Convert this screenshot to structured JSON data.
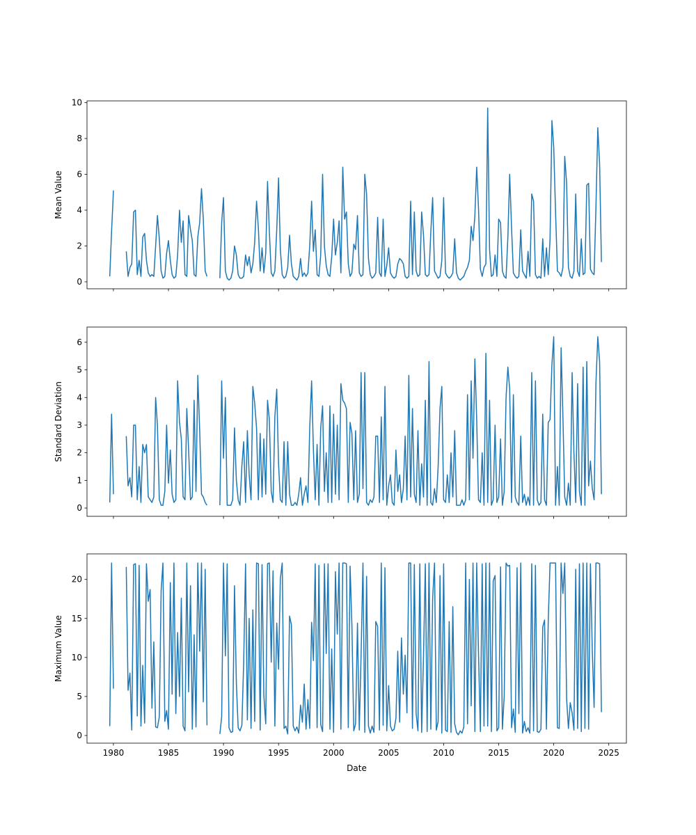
{
  "chart_data": [
    {
      "type": "line",
      "xlabel": "",
      "ylabel": "Mean Value",
      "xlim": [
        1977.6,
        2026.6
      ],
      "ylim": [
        -0.39,
        10.1
      ],
      "yticks": [
        0,
        2,
        4,
        6,
        8,
        10
      ],
      "xticks": [
        1980,
        1985,
        1990,
        1995,
        2000,
        2005,
        2010,
        2015,
        2020,
        2025
      ],
      "show_xtick_labels": false,
      "color": "#1f77b4",
      "grid": false,
      "months": [
        "01",
        "03",
        "05",
        "07",
        "09",
        "11"
      ],
      "by_year": {
        "1979": [
          null,
          null,
          null,
          null,
          0.3,
          2.8
        ],
        "1980": [
          5.1,
          null,
          null,
          null,
          null,
          null
        ],
        "1981": [
          null,
          1.7,
          0.3,
          0.8,
          1.0,
          3.9
        ],
        "1982": [
          4.0,
          0.4,
          1.2,
          0.3,
          2.5,
          2.7
        ],
        "1983": [
          1.2,
          0.5,
          0.3,
          0.4,
          0.3,
          2.0
        ],
        "1984": [
          3.7,
          2.4,
          0.6,
          0.2,
          0.3,
          1.6
        ],
        "1985": [
          2.3,
          1.2,
          0.4,
          0.2,
          0.3,
          1.5
        ],
        "1986": [
          4.0,
          2.2,
          3.4,
          0.4,
          0.3,
          3.7
        ],
        "1987": [
          2.9,
          2.3,
          0.4,
          0.3,
          2.5,
          3.3
        ],
        "1988": [
          5.2,
          3.5,
          0.6,
          0.3,
          null,
          null
        ],
        "1989": [
          null,
          null,
          null,
          null,
          0.2,
          3.3
        ],
        "1990": [
          4.7,
          0.6,
          0.2,
          0.1,
          0.2,
          0.6
        ],
        "1991": [
          2.0,
          1.5,
          0.4,
          0.2,
          0.2,
          0.3
        ],
        "1992": [
          1.5,
          0.9,
          1.4,
          0.5,
          1.0,
          2.2
        ],
        "1993": [
          4.5,
          3.0,
          0.6,
          1.9,
          0.5,
          1.6
        ],
        "1994": [
          5.6,
          2.8,
          0.5,
          0.3,
          0.6,
          2.9
        ],
        "1995": [
          5.8,
          1.8,
          0.4,
          0.2,
          0.3,
          0.8
        ],
        "1996": [
          2.6,
          1.0,
          0.3,
          0.2,
          0.1,
          0.3
        ],
        "1997": [
          1.3,
          0.3,
          0.5,
          0.3,
          0.5,
          2.0
        ],
        "1998": [
          4.5,
          1.7,
          2.9,
          0.4,
          0.3,
          1.5
        ],
        "1999": [
          6.0,
          2.0,
          0.9,
          0.4,
          0.3,
          1.4
        ],
        "2000": [
          3.5,
          1.5,
          2.2,
          3.4,
          0.5,
          6.4
        ],
        "2001": [
          3.5,
          3.9,
          1.0,
          0.3,
          0.5,
          2.1
        ],
        "2002": [
          1.8,
          3.7,
          0.5,
          0.3,
          0.4,
          6.0
        ],
        "2003": [
          4.9,
          1.3,
          0.4,
          0.2,
          0.3,
          0.5
        ],
        "2004": [
          3.6,
          0.5,
          0.3,
          3.5,
          0.3,
          0.9
        ],
        "2005": [
          1.9,
          0.5,
          0.3,
          0.2,
          0.3,
          1.0
        ],
        "2006": [
          1.3,
          1.2,
          1.0,
          0.3,
          0.2,
          0.3
        ],
        "2007": [
          4.5,
          0.4,
          3.9,
          0.6,
          0.3,
          0.4
        ],
        "2008": [
          3.9,
          2.6,
          0.4,
          0.3,
          0.4,
          2.8
        ],
        "2009": [
          4.7,
          0.6,
          0.4,
          0.2,
          0.3,
          1.2
        ],
        "2010": [
          4.7,
          0.5,
          0.3,
          0.2,
          0.3,
          0.5
        ],
        "2011": [
          2.4,
          0.5,
          0.2,
          0.1,
          0.2,
          0.3
        ],
        "2012": [
          0.6,
          0.8,
          1.2,
          3.1,
          2.3,
          3.7
        ],
        "2013": [
          6.4,
          4.1,
          0.7,
          0.3,
          0.8,
          1.0
        ],
        "2014": [
          9.7,
          1.8,
          0.3,
          0.4,
          1.5,
          0.3
        ],
        "2015": [
          3.5,
          3.3,
          0.6,
          0.3,
          0.2,
          2.5
        ],
        "2016": [
          6.0,
          3.0,
          0.5,
          0.3,
          0.2,
          0.3
        ],
        "2017": [
          2.9,
          0.6,
          0.4,
          0.2,
          1.7,
          0.3
        ],
        "2018": [
          4.9,
          4.5,
          0.4,
          0.2,
          0.3,
          0.2
        ],
        "2019": [
          2.4,
          0.3,
          1.9,
          0.4,
          2.4,
          9.0
        ],
        "2020": [
          7.5,
          3.9,
          0.6,
          0.5,
          0.3,
          0.8
        ],
        "2021": [
          7.0,
          5.5,
          0.8,
          0.3,
          0.2,
          0.6
        ],
        "2022": [
          4.9,
          0.6,
          0.3,
          2.4,
          0.4,
          0.5
        ],
        "2023": [
          5.4,
          5.5,
          0.7,
          0.5,
          0.4,
          4.1
        ],
        "2024": [
          8.6,
          6.6,
          1.1,
          null,
          null,
          null
        ]
      }
    },
    {
      "type": "line",
      "xlabel": "",
      "ylabel": "Standard Deviation",
      "xlim": [
        1977.6,
        2026.6
      ],
      "ylim": [
        -0.3,
        6.55
      ],
      "yticks": [
        0,
        1,
        2,
        3,
        4,
        5,
        6
      ],
      "xticks": [
        1980,
        1985,
        1990,
        1995,
        2000,
        2005,
        2010,
        2015,
        2020,
        2025
      ],
      "show_xtick_labels": false,
      "color": "#1f77b4",
      "grid": false,
      "months": [
        "01",
        "03",
        "05",
        "07",
        "09",
        "11"
      ],
      "by_year": {
        "1979": [
          null,
          null,
          null,
          null,
          0.2,
          3.4
        ],
        "1980": [
          0.5,
          null,
          null,
          null,
          null,
          null
        ],
        "1981": [
          null,
          2.6,
          0.8,
          1.1,
          0.4,
          3.0
        ],
        "1982": [
          3.0,
          0.3,
          1.5,
          0.2,
          2.3,
          2.0
        ],
        "1983": [
          2.3,
          0.4,
          0.3,
          0.2,
          0.4,
          4.0
        ],
        "1984": [
          3.0,
          0.3,
          0.1,
          0.1,
          0.6,
          3.0
        ],
        "1985": [
          0.9,
          2.1,
          0.5,
          0.2,
          0.3,
          4.6
        ],
        "1986": [
          3.1,
          2.5,
          0.4,
          0.3,
          3.6,
          2.1
        ],
        "1987": [
          0.3,
          0.4,
          3.9,
          0.6,
          4.8,
          2.8
        ],
        "1988": [
          0.5,
          0.4,
          0.2,
          0.1,
          null,
          null
        ],
        "1989": [
          null,
          null,
          null,
          null,
          0.1,
          4.6
        ],
        "1990": [
          1.8,
          4.0,
          0.1,
          0.1,
          0.1,
          0.3
        ],
        "1991": [
          2.9,
          1.0,
          0.3,
          0.1,
          1.5,
          2.4
        ],
        "1992": [
          0.2,
          2.8,
          1.2,
          0.3,
          4.4,
          3.8
        ],
        "1993": [
          2.9,
          0.3,
          2.7,
          0.4,
          2.5,
          0.5
        ],
        "1994": [
          3.9,
          3.2,
          0.6,
          0.2,
          3.3,
          4.3
        ],
        "1995": [
          1.6,
          0.3,
          0.2,
          2.4,
          0.1,
          2.4
        ],
        "1996": [
          0.5,
          0.1,
          0.1,
          0.2,
          0.1,
          0.5
        ],
        "1997": [
          1.1,
          0.1,
          0.5,
          0.8,
          0.2,
          2.9
        ],
        "1998": [
          4.6,
          2.1,
          0.3,
          2.3,
          0.1,
          2.9
        ],
        "1999": [
          3.7,
          0.6,
          2.0,
          0.2,
          3.7,
          0.2
        ],
        "2000": [
          3.4,
          0.5,
          3.0,
          0.3,
          4.5,
          3.9
        ],
        "2001": [
          3.8,
          3.6,
          0.2,
          3.1,
          2.7,
          0.3
        ],
        "2002": [
          2.8,
          0.2,
          0.5,
          4.9,
          0.7,
          4.9
        ],
        "2003": [
          0.2,
          0.1,
          0.3,
          0.2,
          0.4,
          2.6
        ],
        "2004": [
          2.6,
          0.2,
          3.3,
          0.3,
          4.4,
          0.1
        ],
        "2005": [
          0.8,
          1.2,
          0.2,
          0.1,
          2.1,
          0.6
        ],
        "2006": [
          1.2,
          0.2,
          0.7,
          2.6,
          0.3,
          4.8
        ],
        "2007": [
          0.4,
          3.6,
          0.5,
          0.2,
          2.8,
          0.1
        ],
        "2008": [
          1.6,
          0.4,
          3.9,
          0.1,
          5.3,
          0.2
        ],
        "2009": [
          0.1,
          0.7,
          0.2,
          1.5,
          3.6,
          4.4
        ],
        "2010": [
          0.3,
          0.2,
          1.2,
          0.2,
          2.0,
          0.4
        ],
        "2011": [
          2.8,
          0.1,
          0.1,
          0.1,
          0.3,
          0.1
        ],
        "2012": [
          0.3,
          4.1,
          0.3,
          4.6,
          1.8,
          5.4
        ],
        "2013": [
          3.2,
          0.3,
          0.2,
          2.0,
          0.1,
          5.6
        ],
        "2014": [
          0.2,
          3.9,
          0.1,
          0.3,
          3.0,
          0.2
        ],
        "2015": [
          0.4,
          2.5,
          0.1,
          0.6,
          4.0,
          5.1
        ],
        "2016": [
          4.3,
          0.2,
          4.1,
          0.4,
          0.2,
          0.1
        ],
        "2017": [
          2.6,
          0.2,
          0.5,
          0.1,
          0.4,
          0.1
        ],
        "2018": [
          4.9,
          0.1,
          4.6,
          0.3,
          0.1,
          0.2
        ],
        "2019": [
          3.4,
          0.3,
          0.1,
          3.1,
          3.2,
          5.2
        ],
        "2020": [
          6.2,
          0.1,
          1.5,
          0.1,
          5.8,
          3.3
        ],
        "2021": [
          0.4,
          0.1,
          0.9,
          0.1,
          4.9,
          2.0
        ],
        "2022": [
          0.2,
          4.5,
          0.6,
          0.1,
          5.1,
          0.1
        ],
        "2023": [
          5.3,
          0.8,
          1.7,
          0.7,
          0.3,
          4.5
        ],
        "2024": [
          6.2,
          5.3,
          0.5,
          null,
          null,
          null
        ]
      }
    },
    {
      "type": "line",
      "xlabel": "Date",
      "ylabel": "Maximum Value",
      "xlim": [
        1977.6,
        2026.6
      ],
      "ylim": [
        -0.98,
        23.27
      ],
      "yticks": [
        0,
        5,
        10,
        15,
        20
      ],
      "xticks": [
        1980,
        1985,
        1990,
        1995,
        2000,
        2005,
        2010,
        2015,
        2020,
        2025
      ],
      "show_xtick_labels": true,
      "color": "#1f77b4",
      "grid": false,
      "months": [
        "01",
        "03",
        "05",
        "07",
        "09",
        "11"
      ],
      "by_year": {
        "1979": [
          null,
          null,
          null,
          null,
          1.2,
          22.1
        ],
        "1980": [
          6.0,
          null,
          null,
          null,
          null,
          null
        ],
        "1981": [
          null,
          21.6,
          5.8,
          8.0,
          0.7,
          21.9
        ],
        "1982": [
          22.0,
          2.5,
          21.8,
          1.2,
          9.0,
          1.6
        ],
        "1983": [
          22.0,
          17.2,
          18.7,
          3.5,
          12.0,
          1.1
        ],
        "1984": [
          1.0,
          2.4,
          18.5,
          22.1,
          1.8,
          3.2
        ],
        "1985": [
          0.8,
          19.6,
          5.3,
          22.1,
          2.8,
          13.2
        ],
        "1986": [
          5.0,
          17.6,
          1.2,
          0.6,
          22.1,
          5.6
        ],
        "1987": [
          19.2,
          0.8,
          12.9,
          1.1,
          22.1,
          10.8
        ],
        "1988": [
          22.1,
          4.3,
          21.3,
          1.3,
          null,
          null
        ],
        "1989": [
          null,
          null,
          null,
          null,
          0.2,
          2.4
        ],
        "1990": [
          22.1,
          10.2,
          22.0,
          1.0,
          0.4,
          0.5
        ],
        "1991": [
          19.2,
          6.7,
          1.0,
          0.6,
          1.3,
          9.3
        ],
        "1992": [
          22.0,
          2.0,
          15.0,
          0.9,
          16.1,
          1.8
        ],
        "1993": [
          22.1,
          22.0,
          0.7,
          21.9,
          5.1,
          1.5
        ],
        "1994": [
          22.0,
          22.1,
          9.4,
          21.1,
          1.2,
          14.4
        ],
        "1995": [
          8.5,
          20.1,
          22.1,
          0.9,
          1.2,
          0.2
        ],
        "1996": [
          15.3,
          14.2,
          1.2,
          0.6,
          1.1,
          0.3
        ],
        "1997": [
          3.9,
          1.7,
          6.6,
          0.8,
          4.6,
          0.9
        ],
        "1998": [
          14.5,
          9.6,
          22.0,
          1.0,
          21.8,
          1.4
        ],
        "1999": [
          0.5,
          22.0,
          10.5,
          22.0,
          0.8,
          11.1
        ],
        "2000": [
          0.4,
          21.0,
          13.0,
          22.1,
          0.8,
          22.1
        ],
        "2001": [
          22.1,
          22.0,
          1.0,
          21.7,
          14.1,
          0.6
        ],
        "2002": [
          1.5,
          14.4,
          0.7,
          10.3,
          22.1,
          0.4
        ],
        "2003": [
          20.4,
          1.2,
          0.3,
          1.2,
          0.4,
          14.6
        ],
        "2004": [
          14.0,
          0.7,
          22.1,
          1.3,
          21.5,
          0.6
        ],
        "2005": [
          6.4,
          1.2,
          0.6,
          0.8,
          2.2,
          10.8
        ],
        "2006": [
          1.7,
          12.5,
          5.3,
          10.3,
          2.9,
          22.1
        ],
        "2007": [
          22.1,
          0.9,
          21.9,
          2.8,
          0.6,
          22.0
        ],
        "2008": [
          0.4,
          10.2,
          22.0,
          0.5,
          22.1,
          0.8
        ],
        "2009": [
          17.5,
          22.1,
          0.7,
          1.8,
          20.5,
          0.3
        ],
        "2010": [
          22.0,
          0.7,
          0.5,
          14.6,
          0.4,
          16.5
        ],
        "2011": [
          1.5,
          0.4,
          0.1,
          0.6,
          0.3,
          1.1
        ],
        "2012": [
          22.1,
          1.5,
          20.0,
          3.8,
          22.1,
          0.5
        ],
        "2013": [
          22.1,
          10.5,
          0.5,
          22.0,
          1.2,
          22.1
        ],
        "2014": [
          1.2,
          22.1,
          0.5,
          19.8,
          20.5,
          0.6
        ],
        "2015": [
          1.0,
          21.6,
          0.8,
          5.0,
          22.1,
          21.7
        ],
        "2016": [
          21.8,
          1.0,
          3.4,
          0.4,
          21.5,
          2.8
        ],
        "2017": [
          22.1,
          0.3,
          1.8,
          0.5,
          1.0,
          0.3
        ],
        "2018": [
          22.0,
          0.6,
          21.8,
          0.5,
          0.4,
          0.8
        ],
        "2019": [
          13.9,
          14.8,
          0.8,
          14.7,
          22.1,
          22.1
        ],
        "2020": [
          22.1,
          22.1,
          1.0,
          0.9,
          22.1,
          18.2
        ],
        "2021": [
          22.1,
          4.7,
          0.9,
          4.2,
          2.9,
          0.7
        ],
        "2022": [
          21.3,
          0.9,
          22.0,
          0.5,
          22.1,
          0.9
        ],
        "2023": [
          22.1,
          0.8,
          22.0,
          10.8,
          3.6,
          22.1
        ],
        "2024": [
          22.1,
          22.0,
          3.0,
          null,
          null,
          null
        ]
      }
    }
  ]
}
